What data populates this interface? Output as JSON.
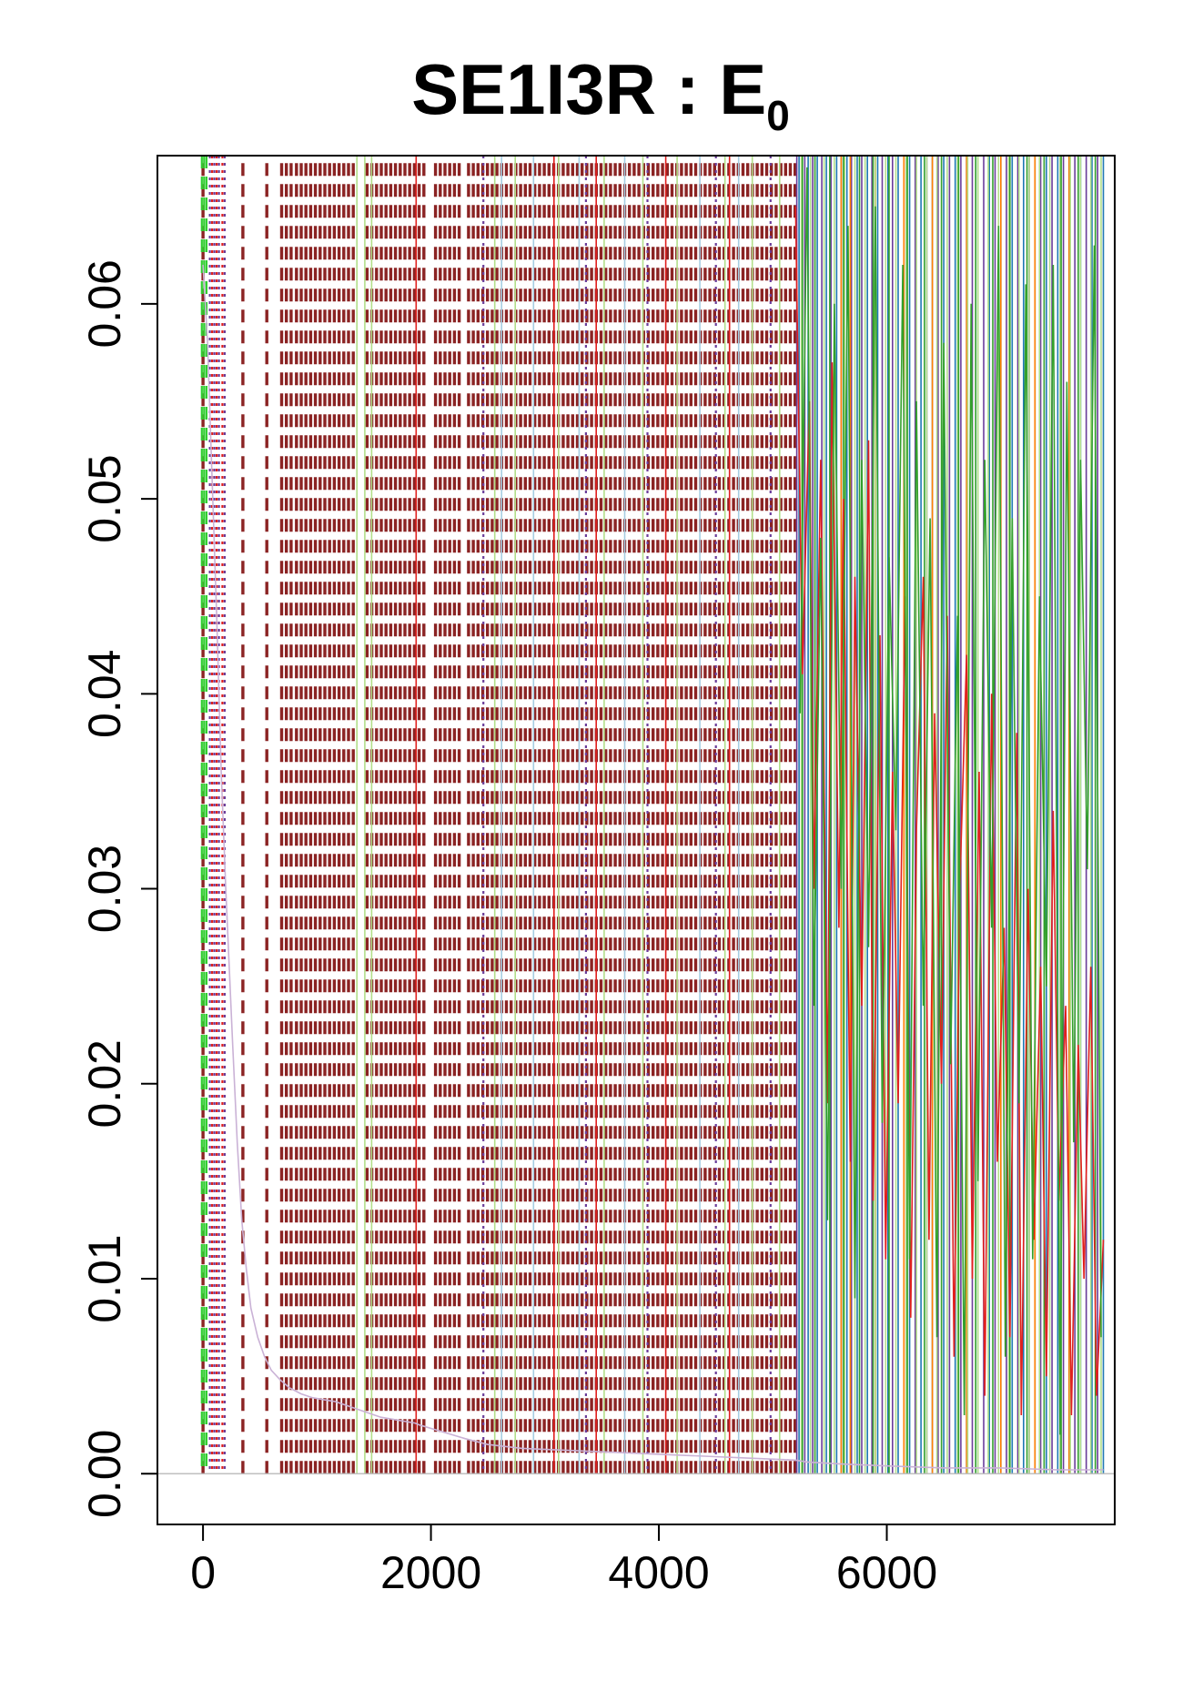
{
  "chart_data": {
    "type": "line",
    "title": "SE1I3R : E",
    "title_subscript": "0",
    "xlabel": "",
    "ylabel": "",
    "xlim": [
      -400,
      8000
    ],
    "ylim": [
      -0.0026,
      0.0676
    ],
    "x_ticks": [
      0,
      2000,
      4000,
      6000
    ],
    "x_tick_labels": [
      "0",
      "2000",
      "4000",
      "6000"
    ],
    "y_ticks": [
      0.0,
      0.01,
      0.02,
      0.03,
      0.04,
      0.05,
      0.06
    ],
    "y_tick_labels": [
      "0.00",
      "0.01",
      "0.02",
      "0.03",
      "0.04",
      "0.05",
      "0.06"
    ],
    "grid": false,
    "legend": "none",
    "baseline": {
      "y": 0,
      "color": "#bfbfbf"
    },
    "colors": {
      "dark_red": "#8b2323",
      "red": "#e0201e",
      "green": "#33a02c",
      "light_green": "#b2df8a",
      "blue": "#1f78b4",
      "light_blue": "#a6cee3",
      "purple": "#6a3d9a",
      "lavender": "#cab2d6",
      "orange": "#ff7f00",
      "bright_green": "#32cd32"
    },
    "series": [
      {
        "style": "dashed",
        "color": "#8b2323",
        "x_bands": [
          [
            0,
            40
          ],
          [
            350,
            360
          ],
          [
            560,
            590
          ],
          [
            690,
            800
          ],
          [
            820,
            1340
          ],
          [
            1440,
            1970
          ],
          [
            2040,
            2280
          ],
          [
            2330,
            5200
          ]
        ],
        "y_range": [
          0,
          0.0676
        ]
      },
      {
        "style": "solid",
        "color": "#e0201e",
        "x": [
          5200,
          5260,
          5320,
          5360,
          5420,
          5480,
          5520,
          5580,
          5620,
          5680,
          5720,
          5780,
          5840,
          5880,
          5940,
          5990,
          6050,
          6100,
          6160,
          6210,
          6260,
          6320,
          6370,
          6420,
          6480,
          6530,
          6590,
          6640,
          6700,
          6750,
          6810,
          6860,
          6920,
          6970,
          7030,
          7080,
          7140,
          7180,
          7240,
          7290,
          7350,
          7400,
          7460,
          7510,
          7570,
          7620,
          7680,
          7730,
          7790,
          7840,
          7900
        ],
        "y": [
          0.065,
          0.041,
          0.055,
          0.03,
          0.052,
          0.019,
          0.057,
          0.028,
          0.05,
          0.016,
          0.046,
          0.024,
          0.053,
          0.014,
          0.043,
          0.011,
          0.036,
          0.019,
          0.045,
          0.008,
          0.033,
          0.046,
          0.012,
          0.039,
          0.02,
          0.044,
          0.006,
          0.03,
          0.042,
          0.01,
          0.036,
          0.004,
          0.04,
          0.016,
          0.028,
          0.007,
          0.038,
          0.003,
          0.03,
          0.012,
          0.026,
          0.005,
          0.034,
          0.014,
          0.024,
          0.003,
          0.022,
          0.01,
          0.026,
          0.004,
          0.012
        ]
      },
      {
        "style": "solid",
        "color": "#33a02c",
        "x": [
          5240,
          5300,
          5360,
          5420,
          5480,
          5540,
          5600,
          5660,
          5720,
          5780,
          5840,
          5900,
          5960,
          6020,
          6080,
          6140,
          6200,
          6260,
          6320,
          6380,
          6440,
          6500,
          6560,
          6620,
          6680,
          6740,
          6800,
          6860,
          6920,
          6980,
          7040,
          7100,
          7160,
          7220,
          7280,
          7340,
          7400,
          7460,
          7520,
          7580,
          7640,
          7700,
          7760,
          7820,
          7880
        ],
        "y": [
          0.039,
          0.067,
          0.024,
          0.048,
          0.013,
          0.06,
          0.03,
          0.064,
          0.009,
          0.052,
          0.027,
          0.065,
          0.018,
          0.047,
          0.033,
          0.062,
          0.011,
          0.055,
          0.024,
          0.049,
          0.007,
          0.058,
          0.021,
          0.044,
          0.003,
          0.06,
          0.015,
          0.052,
          0.028,
          0.064,
          0.006,
          0.049,
          0.019,
          0.061,
          0.011,
          0.045,
          0.025,
          0.062,
          0.002,
          0.056,
          0.017,
          0.052,
          0.031,
          0.063,
          0.007
        ]
      },
      {
        "style": "solid",
        "color": "#cab2d6",
        "x": [
          0,
          40,
          80,
          120,
          160,
          200,
          260,
          300,
          340,
          380,
          420,
          480,
          540,
          600,
          680,
          760,
          860,
          960,
          1060,
          1160,
          1260,
          1360,
          1460,
          1560,
          1660,
          1760,
          1860,
          1900,
          2300,
          2500,
          2800,
          3200,
          3600,
          4000,
          4400,
          4800,
          5200,
          5300,
          5600,
          6000,
          6500,
          7000,
          7500,
          7900
        ],
        "y": [
          0.062,
          0.058,
          0.051,
          0.044,
          0.036,
          0.03,
          0.022,
          0.017,
          0.013,
          0.0105,
          0.0085,
          0.007,
          0.006,
          0.0053,
          0.0048,
          0.0044,
          0.0041,
          0.0039,
          0.0038,
          0.0037,
          0.0035,
          0.0033,
          0.0031,
          0.0029,
          0.0028,
          0.0027,
          0.0026,
          0.0025,
          0.0018,
          0.0015,
          0.0013,
          0.0012,
          0.0011,
          0.001,
          0.0009,
          0.0008,
          0.0007,
          0.0006,
          0.0005,
          0.0004,
          0.0003,
          0.0003,
          0.0002,
          0.0002
        ]
      }
    ],
    "vertical_line_series": [
      {
        "color": "#32cd32",
        "style": "dashed",
        "x": [
          -10,
          10,
          30
        ]
      },
      {
        "color": "#6a3d9a",
        "style": "dotted",
        "x": [
          60,
          100,
          140,
          190,
          2460,
          3360,
          3900,
          4500,
          4980
        ]
      },
      {
        "color": "#e0201e",
        "style": "dotted",
        "x": [
          80,
          120,
          170
        ]
      },
      {
        "color": "#b2df8a",
        "style": "solid",
        "x": [
          1350,
          1420,
          1480,
          2560,
          2740,
          3120,
          3520,
          3860,
          4160,
          4580,
          4820,
          5060
        ]
      },
      {
        "color": "#a6cee3",
        "style": "solid",
        "x": [
          2620,
          2900,
          3300,
          3700,
          4360,
          4700
        ]
      },
      {
        "color": "#e0201e",
        "style": "solid",
        "x": [
          1870,
          3080,
          3450,
          4060,
          4620
        ]
      },
      {
        "color": "#1f78b4",
        "style": "solid",
        "x": [
          5230,
          5310,
          5390,
          5470,
          5560,
          5650,
          5740,
          5830,
          5920,
          6010,
          6100,
          6200,
          6300,
          6400,
          6500,
          6600,
          6700,
          6800,
          6900,
          7000,
          7100,
          7200,
          7300,
          7400,
          7500,
          7600,
          7700,
          7800,
          7900
        ]
      },
      {
        "color": "#6a3d9a",
        "style": "solid",
        "x": [
          5210,
          5280,
          5350,
          5430,
          5510,
          5600,
          5690,
          5780,
          5870,
          5960,
          6050,
          6150,
          6250,
          6350,
          6450,
          6550,
          6650,
          6750,
          6850,
          6950,
          7050,
          7150,
          7250,
          7350,
          7450,
          7550,
          7650,
          7750,
          7850
        ]
      },
      {
        "color": "#ff7f00",
        "style": "solid",
        "x": [
          5600,
          5680,
          5900,
          6150,
          6400,
          6700,
          7000,
          7300,
          7600
        ]
      },
      {
        "color": "#b2df8a",
        "style": "solid",
        "x": [
          5250,
          5330,
          5450,
          5540,
          5630,
          5720,
          5810,
          5900,
          5990,
          6080,
          6170,
          6260,
          6350,
          6440,
          6530,
          6620,
          6710,
          6800,
          6890,
          6980,
          7070,
          7160,
          7250,
          7340,
          7430,
          7520,
          7610,
          7700,
          7790,
          7880
        ]
      },
      {
        "color": "#33a02c",
        "style": "solid",
        "x": [
          5260,
          5370,
          5500,
          5620,
          5760,
          5880,
          6020,
          6180,
          6330,
          6480,
          6630,
          6780,
          6930,
          7080,
          7230,
          7380,
          7530,
          7680,
          7830
        ]
      }
    ]
  }
}
